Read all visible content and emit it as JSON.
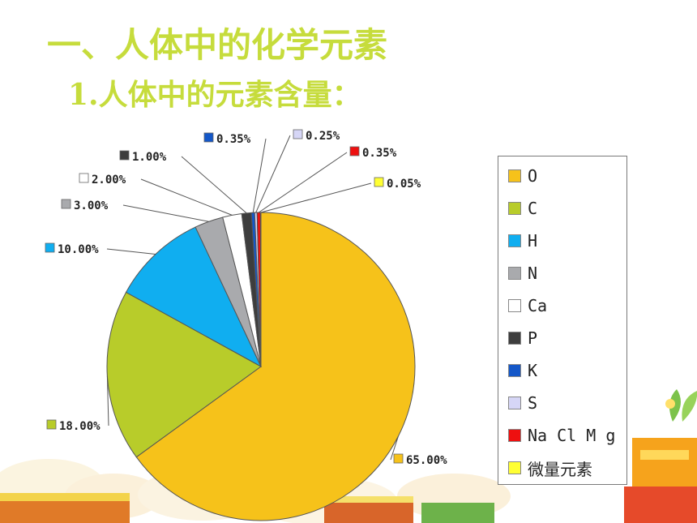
{
  "header": {
    "title": "一、人体中的化学元素",
    "subtitle": "1.人体中的元素含量："
  },
  "chart_data": {
    "type": "pie",
    "legend_position": "right",
    "categories": [
      "O",
      "C",
      "H",
      "N",
      "Ca",
      "P",
      "K",
      "S",
      "Na Cl Mg",
      "微量元素"
    ],
    "values": [
      65.0,
      18.0,
      10.0,
      3.0,
      2.0,
      1.0,
      0.35,
      0.25,
      0.35,
      0.05
    ],
    "labels": [
      "65.00%",
      "18.00%",
      "10.00%",
      "3.00%",
      "2.00%",
      "1.00%",
      "0.35%",
      "0.25%",
      "0.35%",
      "0.05%"
    ],
    "colors": [
      "#f6c21a",
      "#b8cc2a",
      "#10aef0",
      "#a9aaad",
      "#ffffff",
      "#3d3d3d",
      "#1457c8",
      "#d6d6f6",
      "#ee1010",
      "#ffff33"
    ]
  },
  "legend": {
    "items": [
      {
        "label": "O"
      },
      {
        "label": "C"
      },
      {
        "label": "H"
      },
      {
        "label": "N"
      },
      {
        "label": "Ca"
      },
      {
        "label": "P"
      },
      {
        "label": "K"
      },
      {
        "label": "S"
      },
      {
        "label": "Na Cl M g"
      },
      {
        "label": "微量元素"
      }
    ]
  }
}
